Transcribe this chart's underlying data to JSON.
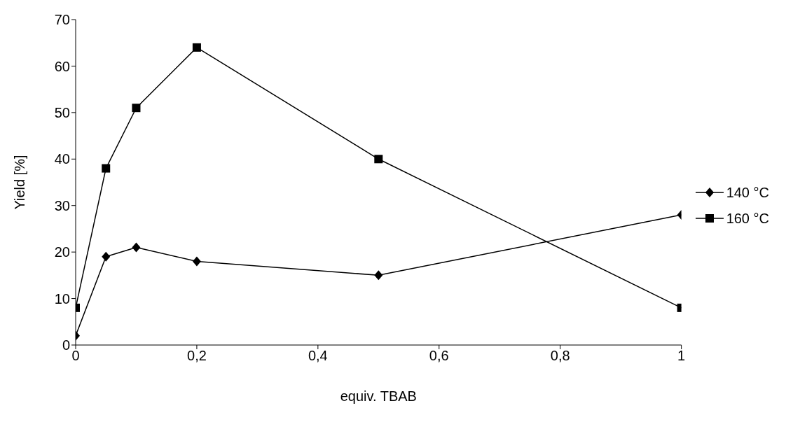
{
  "chart_data": {
    "type": "line",
    "xlabel": "equiv. TBAB",
    "ylabel": "Yield [%]",
    "series": [
      {
        "name": "140 °C",
        "color": "#000000",
        "marker": "diamond",
        "x": [
          0,
          0.05,
          0.1,
          0.2,
          0.5,
          1
        ],
        "values": [
          2,
          19,
          21,
          18,
          15,
          28
        ]
      },
      {
        "name": "160 °C",
        "color": "#000000",
        "marker": "square",
        "x": [
          0,
          0.05,
          0.1,
          0.2,
          0.5,
          1
        ],
        "values": [
          8,
          38,
          51,
          64,
          40,
          8
        ]
      }
    ],
    "xlim": [
      0,
      1
    ],
    "xticks": [
      0,
      {
        "value": 0.2,
        "label": "0,2"
      },
      {
        "value": 0.4,
        "label": "0,4"
      },
      {
        "value": 0.6,
        "label": "0,6"
      },
      {
        "value": 0.8,
        "label": "0,8"
      },
      1
    ],
    "ylim": [
      0,
      70
    ],
    "yticks": [
      0,
      10,
      20,
      30,
      40,
      50,
      60,
      70
    ],
    "grid": false,
    "legend": "right",
    "line_style": "solid"
  }
}
